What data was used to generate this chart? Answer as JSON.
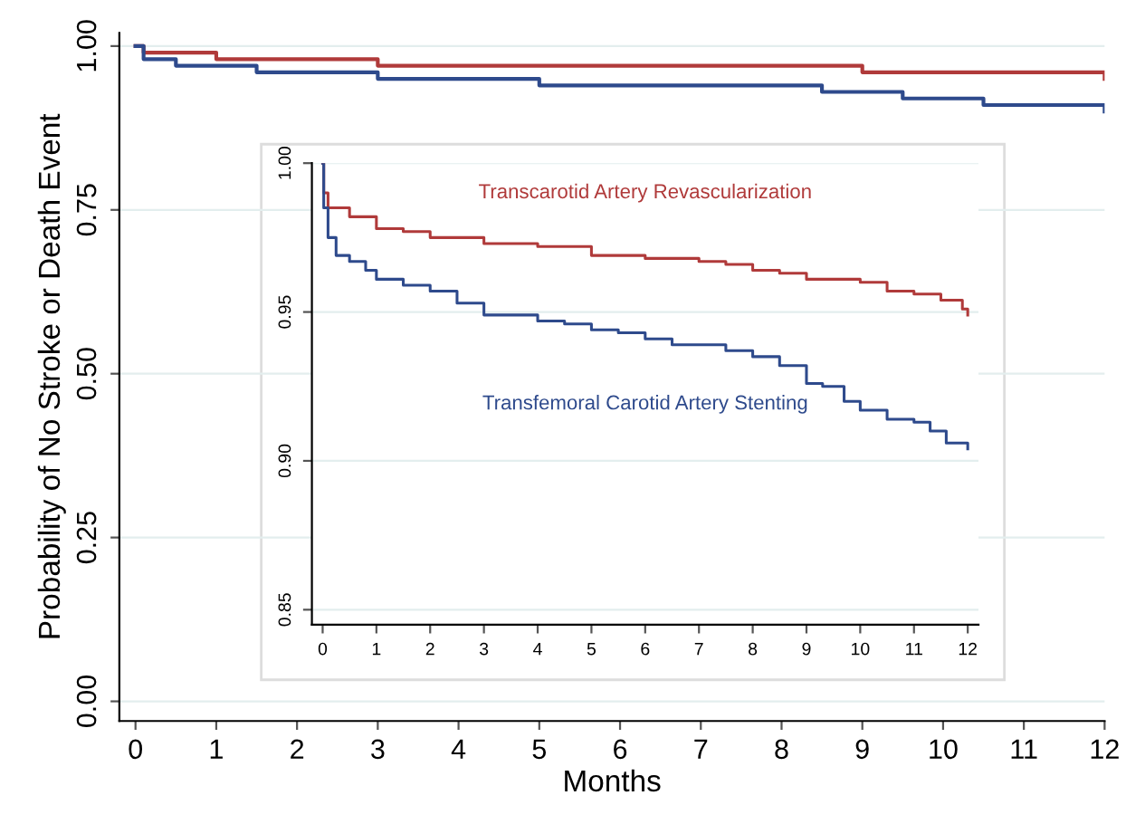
{
  "chart_data": [
    {
      "type": "step",
      "xlabel": "Months",
      "ylabel": "Probability of No Stroke or Death Event",
      "xlim": [
        -0.2,
        12
      ],
      "ylim": [
        -0.03,
        1.02
      ],
      "xticks": [
        0,
        1,
        2,
        3,
        4,
        5,
        6,
        7,
        8,
        9,
        10,
        11,
        12
      ],
      "yticks": [
        {
          "value": 0,
          "label": "0.00"
        },
        {
          "value": 0.25,
          "label": "0.25"
        },
        {
          "value": 0.5,
          "label": "0.50"
        },
        {
          "value": 0.75,
          "label": "0.75"
        },
        {
          "value": 1,
          "label": "1.00"
        }
      ],
      "grid": "y",
      "series": [
        {
          "color": "#b03a3a",
          "x": [
            0,
            0.1,
            1,
            2,
            3,
            5,
            7,
            9,
            10.5,
            12
          ],
          "values": [
            1.0,
            0.99,
            0.98,
            0.98,
            0.97,
            0.97,
            0.97,
            0.96,
            0.96,
            0.95
          ]
        },
        {
          "color": "#2e4a8c",
          "x": [
            0,
            0.1,
            0.5,
            1.5,
            3,
            5,
            7,
            8.5,
            9.5,
            10.5,
            12
          ],
          "values": [
            1.0,
            0.98,
            0.97,
            0.96,
            0.95,
            0.94,
            0.94,
            0.93,
            0.92,
            0.91,
            0.9
          ]
        }
      ]
    },
    {
      "type": "step",
      "xlim": [
        -0.2,
        12.2
      ],
      "ylim": [
        0.845,
        1.0
      ],
      "xticks": [
        0,
        1,
        2,
        3,
        4,
        5,
        6,
        7,
        8,
        9,
        10,
        11,
        12
      ],
      "yticks": [
        {
          "value": 0.85,
          "label": "0.85"
        },
        {
          "value": 0.9,
          "label": "0.90"
        },
        {
          "value": 0.95,
          "label": "0.95"
        },
        {
          "value": 1.0,
          "label": "1.00"
        }
      ],
      "grid": "y",
      "series": [
        {
          "name": "Transcarotid Artery Revascularization",
          "color": "#b03a3a",
          "x": [
            0,
            0.02,
            0.1,
            0.5,
            1,
            1.5,
            2,
            3,
            4,
            4.8,
            5,
            6,
            7,
            7.5,
            8,
            8.5,
            9,
            10,
            10.5,
            11,
            11.5,
            11.9,
            12
          ],
          "values": [
            1.0,
            0.99,
            0.985,
            0.982,
            0.978,
            0.977,
            0.975,
            0.973,
            0.972,
            0.972,
            0.969,
            0.968,
            0.967,
            0.966,
            0.964,
            0.963,
            0.961,
            0.96,
            0.957,
            0.956,
            0.954,
            0.951,
            0.949
          ]
        },
        {
          "name": "Transfemoral Carotid Artery Stenting",
          "color": "#2e4a8c",
          "x": [
            0,
            0.02,
            0.1,
            0.25,
            0.5,
            0.8,
            1,
            1.5,
            2,
            2.5,
            3,
            4,
            4.5,
            5,
            5.5,
            6,
            6.5,
            7,
            7.5,
            8,
            8.5,
            9,
            9.3,
            9.7,
            10,
            10.5,
            11,
            11.3,
            11.6,
            12
          ],
          "values": [
            1.0,
            0.985,
            0.975,
            0.969,
            0.967,
            0.964,
            0.961,
            0.959,
            0.957,
            0.953,
            0.949,
            0.947,
            0.946,
            0.944,
            0.943,
            0.941,
            0.939,
            0.939,
            0.937,
            0.935,
            0.932,
            0.926,
            0.925,
            0.92,
            0.917,
            0.914,
            0.913,
            0.91,
            0.906,
            0.904
          ]
        }
      ]
    }
  ]
}
